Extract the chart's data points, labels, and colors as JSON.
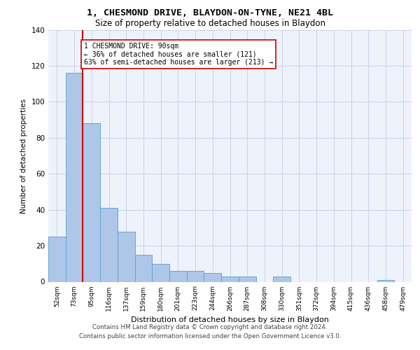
{
  "title1": "1, CHESMOND DRIVE, BLAYDON-ON-TYNE, NE21 4BL",
  "title2": "Size of property relative to detached houses in Blaydon",
  "xlabel": "Distribution of detached houses by size in Blaydon",
  "ylabel": "Number of detached properties",
  "categories": [
    "52sqm",
    "73sqm",
    "95sqm",
    "116sqm",
    "137sqm",
    "159sqm",
    "180sqm",
    "201sqm",
    "223sqm",
    "244sqm",
    "266sqm",
    "287sqm",
    "308sqm",
    "330sqm",
    "351sqm",
    "372sqm",
    "394sqm",
    "415sqm",
    "436sqm",
    "458sqm",
    "479sqm"
  ],
  "values": [
    25,
    116,
    88,
    41,
    28,
    15,
    10,
    6,
    6,
    5,
    3,
    3,
    0,
    3,
    0,
    0,
    0,
    0,
    0,
    1,
    0
  ],
  "bar_color": "#aec6e8",
  "bar_edge_color": "#5a9fd4",
  "highlight_line_color": "#cc0000",
  "annotation_text": "1 CHESMOND DRIVE: 90sqm\n← 36% of detached houses are smaller (121)\n63% of semi-detached houses are larger (213) →",
  "annotation_box_color": "#ffffff",
  "annotation_box_edge": "#cc0000",
  "ylim": [
    0,
    140
  ],
  "yticks": [
    0,
    20,
    40,
    60,
    80,
    100,
    120,
    140
  ],
  "footer1": "Contains HM Land Registry data © Crown copyright and database right 2024.",
  "footer2": "Contains public sector information licensed under the Open Government Licence v3.0.",
  "plot_bg": "#eef2fb"
}
